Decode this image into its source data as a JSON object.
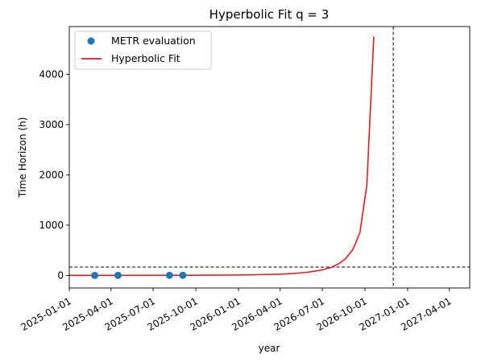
{
  "chart_data": {
    "type": "scatter",
    "title": "Hyperbolic Fit q = 3",
    "xlabel": "year",
    "ylabel": "Time Horizon (h)",
    "x_axis_type": "date",
    "xlim": [
      "2025-01-01",
      "2027-05-15"
    ],
    "ylim": [
      -250,
      4950
    ],
    "x_ticks": [
      "2025-01-01",
      "2025-04-01",
      "2025-07-01",
      "2025-10-01",
      "2026-01-01",
      "2026-04-01",
      "2026-07-01",
      "2026-10-01",
      "2027-01-01",
      "2027-04-01"
    ],
    "y_ticks": [
      0,
      1000,
      2000,
      3000,
      4000
    ],
    "legend_position": "top-left",
    "grid": false,
    "series": [
      {
        "name": "METR evaluation",
        "kind": "scatter",
        "color": "#1f77b4",
        "points": [
          {
            "x": "2025-02-25",
            "y": 0.9
          },
          {
            "x": "2025-04-16",
            "y": 1.5
          },
          {
            "x": "2025-08-05",
            "y": 2.0
          },
          {
            "x": "2025-09-03",
            "y": 2.4
          }
        ]
      },
      {
        "name": "Hyperbolic Fit",
        "kind": "line",
        "color": "#e31a1c",
        "points": [
          {
            "x": "2025-01-01",
            "y": 0.5
          },
          {
            "x": "2025-04-01",
            "y": 1.2
          },
          {
            "x": "2025-07-01",
            "y": 2.0
          },
          {
            "x": "2025-10-01",
            "y": 3.5
          },
          {
            "x": "2026-01-01",
            "y": 8
          },
          {
            "x": "2026-02-01",
            "y": 12
          },
          {
            "x": "2026-03-01",
            "y": 18
          },
          {
            "x": "2026-04-01",
            "y": 25
          },
          {
            "x": "2026-05-01",
            "y": 40
          },
          {
            "x": "2026-06-01",
            "y": 65
          },
          {
            "x": "2026-07-01",
            "y": 110
          },
          {
            "x": "2026-07-20",
            "y": 160
          },
          {
            "x": "2026-08-05",
            "y": 230
          },
          {
            "x": "2026-08-20",
            "y": 330
          },
          {
            "x": "2026-09-05",
            "y": 520
          },
          {
            "x": "2026-09-20",
            "y": 850
          },
          {
            "x": "2026-10-05",
            "y": 1800
          },
          {
            "x": "2026-10-20",
            "y": 4750
          }
        ]
      }
    ],
    "reference_lines": [
      {
        "orientation": "horizontal",
        "y": 167,
        "style": "dashed",
        "color": "#000000"
      },
      {
        "orientation": "vertical",
        "x": "2026-12-01",
        "style": "dashed",
        "color": "#000000"
      }
    ]
  }
}
